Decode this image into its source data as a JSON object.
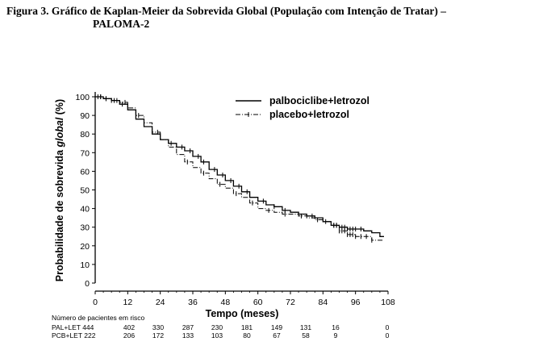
{
  "title_line1": "Figura 3. Gráfico de Kaplan-Meier da Sobrevida Global (População com Intenção de Tratar) –",
  "title_line2": "PALOMA-2",
  "chart_data": {
    "type": "line",
    "xlabel": "Tempo (meses)",
    "ylabel_main": "Probabilidade de sobrevida ",
    "ylabel_italic": "global",
    "ylabel_unit": " (%)",
    "xlim": [
      0,
      108
    ],
    "ylim": [
      0,
      100
    ],
    "x_ticks": [
      0,
      12,
      24,
      36,
      48,
      60,
      72,
      84,
      96,
      108
    ],
    "y_ticks": [
      0,
      10,
      20,
      30,
      40,
      50,
      60,
      70,
      80,
      90,
      100
    ],
    "legend_position": "top-right",
    "series": [
      {
        "name": "palbociclibe+letrozol",
        "style": "solid",
        "x": [
          0,
          3,
          6,
          9,
          12,
          15,
          18,
          21,
          24,
          27,
          30,
          33,
          36,
          39,
          42,
          45,
          48,
          51,
          54,
          57,
          60,
          63,
          66,
          69,
          72,
          75,
          78,
          81,
          84,
          87,
          90,
          93,
          96,
          99,
          102,
          105
        ],
        "y": [
          100,
          99,
          98,
          96,
          93,
          88,
          84,
          80,
          77,
          75,
          73,
          71,
          68,
          65,
          61,
          58,
          55,
          52,
          49,
          46,
          44,
          42,
          41,
          39,
          38,
          37,
          36,
          35,
          33,
          31,
          30,
          29,
          29,
          28,
          27,
          25
        ],
        "censor_x": [
          1,
          2,
          4,
          6,
          8,
          10,
          28,
          32,
          35,
          38,
          40,
          44,
          47,
          50,
          53,
          56,
          62,
          66,
          70,
          75,
          80,
          85,
          88,
          89,
          90,
          91,
          92,
          93,
          94,
          95,
          96,
          98
        ]
      },
      {
        "name": "placebo+letrozol",
        "style": "dash-dot",
        "x": [
          0,
          3,
          6,
          9,
          12,
          15,
          18,
          21,
          24,
          27,
          30,
          33,
          36,
          39,
          42,
          45,
          48,
          51,
          54,
          57,
          60,
          63,
          66,
          69,
          72,
          75,
          78,
          81,
          84,
          87,
          90,
          93,
          96,
          99,
          102,
          105
        ],
        "y": [
          100,
          99,
          98,
          97,
          94,
          90,
          86,
          81,
          77,
          73,
          69,
          65,
          62,
          59,
          56,
          53,
          51,
          48,
          46,
          43,
          40,
          39,
          38,
          37,
          37,
          36,
          35,
          34,
          33,
          31,
          28,
          26,
          25,
          25,
          23,
          23
        ],
        "censor_x": [
          2,
          4,
          7,
          11,
          16,
          23,
          34,
          40,
          46,
          52,
          58,
          64,
          70,
          76,
          82,
          88,
          89,
          90,
          91,
          92,
          93,
          94,
          95,
          96,
          98,
          100,
          102
        ]
      }
    ]
  },
  "risk_table": {
    "heading": "Número de pacientes em risco",
    "rows": [
      {
        "label": "PAL+LET 444",
        "values": [
          "402",
          "330",
          "287",
          "230",
          "181",
          "149",
          "131",
          "16",
          "0"
        ]
      },
      {
        "label": "PCB+LET 222",
        "values": [
          "206",
          "172",
          "133",
          "103",
          "80",
          "67",
          "58",
          "9",
          "0"
        ]
      }
    ]
  }
}
